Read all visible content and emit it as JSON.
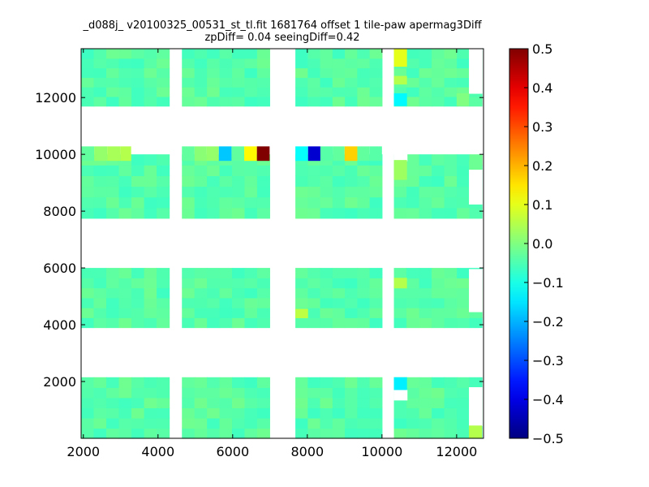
{
  "chart_data": {
    "type": "heatmap",
    "title_line1": "_d088j_ v20100325_00531_st_tl.fit 1681764 offset 1 tile-paw apermag3Diff",
    "title_line2": "zpDiff= 0.04 seeingDiff=0.42",
    "xlabel": "",
    "ylabel": "",
    "xlim": [
      1940,
      12720
    ],
    "ylim": [
      0,
      13720
    ],
    "xticks": [
      2000,
      4000,
      6000,
      8000,
      10000,
      12000
    ],
    "yticks": [
      2000,
      4000,
      6000,
      8000,
      10000,
      12000
    ],
    "colorbar": {
      "range": [
        -0.5,
        0.5
      ],
      "ticks": [
        "0.5",
        "0.4",
        "0.3",
        "0.2",
        "0.1",
        "0.0",
        "−0.1",
        "−0.2",
        "−0.3",
        "−0.4",
        "−0.5"
      ],
      "colormap": "jet"
    },
    "grid": false,
    "detector_blocks": {
      "x_ranges": [
        [
          1940,
          4300
        ],
        [
          4640,
          6990
        ],
        [
          7680,
          10000
        ],
        [
          10320,
          12680
        ]
      ],
      "y_ranges": [
        [
          0,
          2150
        ],
        [
          3900,
          6000
        ],
        [
          7750,
          10000
        ],
        [
          11700,
          13720
        ]
      ],
      "base_value": -0.04
    },
    "top_strip": {
      "y_range": [
        9770,
        10280
      ],
      "cells": [
        {
          "x": [
            1940,
            2290
          ],
          "value": -0.03
        },
        {
          "x": [
            2290,
            2640
          ],
          "value": 0.02
        },
        {
          "x": [
            2640,
            3000
          ],
          "value": 0.04
        },
        {
          "x": [
            3000,
            3280
          ],
          "value": 0.05
        },
        {
          "x": [
            4640,
            4980
          ],
          "value": -0.03
        },
        {
          "x": [
            4980,
            5300
          ],
          "value": 0.01
        },
        {
          "x": [
            5300,
            5630
          ],
          "value": 0.02
        },
        {
          "x": [
            5630,
            5970
          ],
          "value": -0.18
        },
        {
          "x": [
            5970,
            6310
          ],
          "value": -0.03
        },
        {
          "x": [
            6310,
            6650
          ],
          "value": 0.13
        },
        {
          "x": [
            6650,
            6990
          ],
          "value": 0.5
        },
        {
          "x": [
            7680,
            8020
          ],
          "value": -0.12
        },
        {
          "x": [
            8020,
            8350
          ],
          "value": -0.42
        },
        {
          "x": [
            8350,
            8690
          ],
          "value": -0.04
        },
        {
          "x": [
            8690,
            9000
          ],
          "value": -0.03
        },
        {
          "x": [
            9000,
            9340
          ],
          "value": 0.17
        },
        {
          "x": [
            9340,
            9670
          ],
          "value": -0.03
        },
        {
          "x": [
            9670,
            10000
          ],
          "value": -0.04
        }
      ]
    },
    "highlight_cells": [
      {
        "x": [
          10320,
          10670
        ],
        "y": [
          13080,
          13720
        ],
        "value": 0.1
      },
      {
        "x": [
          10320,
          10670
        ],
        "y": [
          12460,
          12760
        ],
        "value": 0.05
      },
      {
        "x": [
          10320,
          10670
        ],
        "y": [
          11700,
          12150
        ],
        "value": -0.13
      },
      {
        "x": [
          10320,
          10670
        ],
        "y": [
          9100,
          9800
        ],
        "value": 0.03
      },
      {
        "x": [
          10320,
          10670
        ],
        "y": [
          5280,
          5650
        ],
        "value": 0.05
      },
      {
        "x": [
          10320,
          10670
        ],
        "y": [
          1700,
          2150
        ],
        "value": -0.14
      },
      {
        "x": [
          7680,
          8020
        ],
        "y": [
          4230,
          4560
        ],
        "value": 0.06
      },
      {
        "x": [
          12000,
          12330
        ],
        "y": [
          11700,
          12150
        ],
        "value": 0.0
      },
      {
        "x": [
          12330,
          12680
        ],
        "y": [
          0,
          450
        ],
        "value": 0.05
      },
      {
        "x": [
          12330,
          12680
        ],
        "y": [
          9460,
          9800
        ],
        "value": -0.02
      }
    ],
    "gaps": [
      {
        "x": [
          10320,
          10670
        ],
        "y": [
          13720,
          13720
        ]
      },
      {
        "x": [
          12330,
          12680
        ],
        "y": [
          12150,
          13720
        ]
      },
      {
        "x": [
          12330,
          12680
        ],
        "y": [
          8250,
          9460
        ]
      },
      {
        "x": [
          12330,
          12680
        ],
        "y": [
          4460,
          5960
        ]
      },
      {
        "x": [
          12330,
          12680
        ],
        "y": [
          450,
          1800
        ]
      },
      {
        "x": [
          10320,
          10670
        ],
        "y": [
          9770,
          10280
        ]
      },
      {
        "x": [
          10320,
          10670
        ],
        "y": [
          1350,
          1700
        ]
      }
    ]
  }
}
